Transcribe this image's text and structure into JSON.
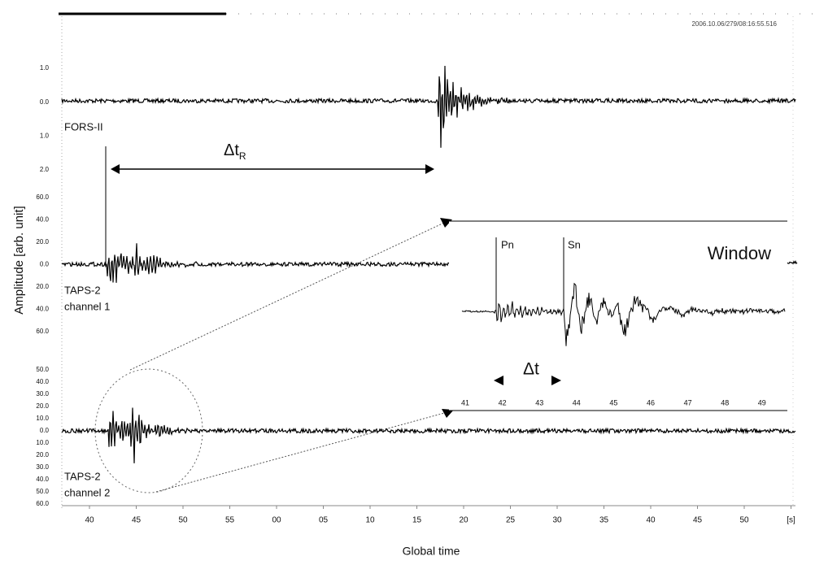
{
  "figure": {
    "timestamp": "2006.10.06/279/08:16:55.516",
    "y_axis_label": "Amplitude [arb. unit]",
    "x_axis_label": "Global time",
    "x_tick_labels": [
      "40",
      "45",
      "50",
      "55",
      "00",
      "05",
      "10",
      "15",
      "20",
      "25",
      "30",
      "35",
      "40",
      "45",
      "50",
      "[s]"
    ],
    "traces": [
      {
        "name_lines": [
          "FORS-II"
        ],
        "tick_labels": [
          "1.0",
          "0.0",
          "1.0",
          "2.0"
        ]
      },
      {
        "name_lines": [
          "TAPS-2",
          "channel 1"
        ],
        "tick_labels": [
          "60.0",
          "40.0",
          "20.0",
          "0.0",
          "20.0",
          "40.0",
          "60.0"
        ]
      },
      {
        "name_lines": [
          "TAPS-2",
          "channel 2"
        ],
        "tick_labels": [
          "50.0",
          "40.0",
          "30.0",
          "20.0",
          "10.0",
          "0.0",
          "10.0",
          "20.0",
          "30.0",
          "40.0",
          "50.0",
          "60.0"
        ]
      }
    ],
    "delta_t_r": {
      "symbol": "Δt",
      "subscript": "R"
    },
    "inset": {
      "title": "Window",
      "phases": [
        "Pn",
        "Sn"
      ],
      "delta_t": "Δt",
      "tick_labels": [
        "41",
        "42",
        "43",
        "44",
        "45",
        "46",
        "47",
        "48",
        "49"
      ]
    }
  }
}
